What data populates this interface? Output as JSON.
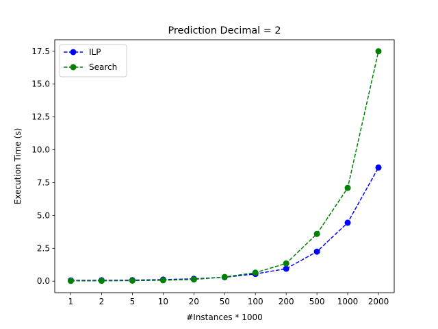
{
  "chart_data": {
    "type": "line",
    "title": "Prediction Decimal = 2",
    "xlabel": "#Instances * 1000",
    "ylabel": "Execution Time (s)",
    "categories": [
      "1",
      "2",
      "5",
      "10",
      "20",
      "50",
      "100",
      "200",
      "500",
      "1000",
      "2000"
    ],
    "ylim": [
      -0.875,
      18.375
    ],
    "yticks": [
      0.0,
      2.5,
      5.0,
      7.5,
      10.0,
      12.5,
      15.0,
      17.5
    ],
    "ytick_labels": [
      "0.0",
      "2.5",
      "5.0",
      "7.5",
      "10.0",
      "12.5",
      "15.0",
      "17.5"
    ],
    "legend_position": "top-left",
    "grid": false,
    "series": [
      {
        "name": "ILP",
        "color": "#0000ff",
        "values": [
          0.06,
          0.07,
          0.08,
          0.12,
          0.18,
          0.3,
          0.55,
          0.95,
          2.25,
          4.45,
          8.65
        ]
      },
      {
        "name": "Search",
        "color": "#008000",
        "values": [
          0.02,
          0.03,
          0.04,
          0.07,
          0.13,
          0.32,
          0.65,
          1.35,
          3.6,
          7.1,
          17.5
        ]
      }
    ]
  }
}
